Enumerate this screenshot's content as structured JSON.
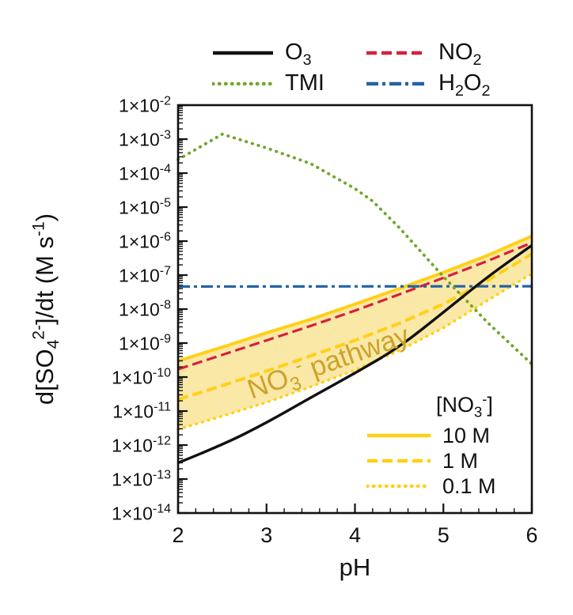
{
  "figure": {
    "background": "#ffffff"
  },
  "top_legend": {
    "items": [
      {
        "series_id": "O3",
        "label_segments": [
          {
            "t": "O"
          },
          {
            "t": "3",
            "pos": "sub"
          }
        ]
      },
      {
        "series_id": "NO2",
        "label_segments": [
          {
            "t": "NO"
          },
          {
            "t": "2",
            "pos": "sub"
          }
        ]
      },
      {
        "series_id": "TMI",
        "label_segments": [
          {
            "t": "TMI"
          }
        ]
      },
      {
        "series_id": "H2O2",
        "label_segments": [
          {
            "t": "H"
          },
          {
            "t": "2",
            "pos": "sub"
          },
          {
            "t": "O"
          },
          {
            "t": "2",
            "pos": "sub"
          }
        ]
      }
    ]
  },
  "inner_legend": {
    "title_segments": [
      {
        "t": "[NO"
      },
      {
        "t": "3",
        "pos": "sub"
      },
      {
        "t": "-",
        "pos": "sup"
      },
      {
        "t": "]"
      }
    ],
    "swatch_color": "#ffd015",
    "items": [
      {
        "label": "10 M",
        "style": "solid"
      },
      {
        "label": "1 M",
        "style": "dashed"
      },
      {
        "label": "0.1 M",
        "style": "dotted"
      }
    ]
  },
  "annotation": {
    "segments": [
      {
        "t": "NO"
      },
      {
        "t": "3",
        "pos": "sub"
      },
      {
        "t": "-",
        "pos": "sup"
      },
      {
        "t": " pathway"
      }
    ],
    "color": "#cda32b",
    "angle_deg": -19.5
  },
  "chart_data": {
    "type": "line",
    "xlabel": "pH",
    "ylabel_segments": [
      {
        "t": "d[SO"
      },
      {
        "t": "4",
        "pos": "sub"
      },
      {
        "t": "2-",
        "pos": "sup"
      },
      {
        "t": "]/dt (M s"
      },
      {
        "t": "-1",
        "pos": "sup"
      },
      {
        "t": ")"
      }
    ],
    "x_range": [
      2,
      6
    ],
    "x_ticks": [
      2,
      3,
      4,
      5,
      6
    ],
    "x_minor_step": 0.2,
    "y_scale": "log",
    "y_exp_range": [
      -2,
      -14
    ],
    "y_tick_exponents": [
      -2,
      -3,
      -4,
      -5,
      -6,
      -7,
      -8,
      -9,
      -10,
      -11,
      -12,
      -13,
      -14
    ],
    "y_tick_mantissa": "1×10",
    "grid": false,
    "band": {
      "upper": "NO3_10M",
      "lower": "NO3_01M",
      "fill": "#f9e8a6"
    },
    "series": [
      {
        "id": "NO3_01M",
        "name": "NO3- pathway, 0.1 M",
        "color": "#ffd015",
        "style": "dotted",
        "width": 3.6,
        "x": [
          2,
          2.5,
          3,
          3.5,
          4,
          4.5,
          5,
          5.5,
          6
        ],
        "y": [
          2.9e-12,
          7.1e-12,
          1.8e-11,
          5.2e-11,
          1.6e-10,
          6e-10,
          2.8e-09,
          1.8e-08,
          1.1e-07
        ]
      },
      {
        "id": "NO3_1M",
        "name": "NO3- pathway, 1 M",
        "color": "#ffd015",
        "style": "dashed",
        "width": 4,
        "x": [
          2,
          2.5,
          3,
          3.5,
          4,
          4.5,
          5,
          5.5,
          6
        ],
        "y": [
          2.2e-11,
          5.6e-11,
          1.5e-10,
          4.2e-10,
          1.2e-09,
          3.8e-09,
          1.4e-08,
          7e-08,
          4.2e-07
        ]
      },
      {
        "id": "NO3_10M",
        "name": "NO3- pathway, 10 M",
        "color": "#ffd015",
        "style": "solid",
        "width": 4,
        "x": [
          2,
          2.5,
          3,
          3.5,
          4,
          4.5,
          5,
          5.5,
          6
        ],
        "y": [
          3e-10,
          7.6e-10,
          2e-09,
          5e-09,
          1.4e-08,
          4e-08,
          1.2e-07,
          3.8e-07,
          1.4e-06
        ]
      },
      {
        "id": "NO2",
        "name": "NO2",
        "color": "#d6203c",
        "style": "dashed",
        "width": 3.2,
        "x": [
          2,
          2.5,
          3,
          3.5,
          4,
          4.5,
          5,
          5.5,
          6
        ],
        "y": [
          1.7e-10,
          4.5e-10,
          1.2e-09,
          3.2e-09,
          9e-09,
          2.7e-08,
          8.3e-08,
          2.6e-07,
          9e-07
        ]
      },
      {
        "id": "H2O2",
        "name": "H2O2",
        "color": "#2363a4",
        "style": "dashdot",
        "width": 3.2,
        "x": [
          2,
          6
        ],
        "y": [
          4.6e-08,
          4.7e-08
        ]
      },
      {
        "id": "TMI",
        "name": "TMI",
        "color": "#72a52c",
        "style": "dotted",
        "width": 3.8,
        "x": [
          2,
          2.5,
          3,
          3.5,
          4,
          4.2,
          4.5,
          5,
          5.5,
          6
        ],
        "y": [
          0.00025,
          0.0014,
          0.00055,
          0.00019,
          3.5e-05,
          1.5e-05,
          2.5e-06,
          9e-08,
          4e-09,
          2.4e-10
        ]
      },
      {
        "id": "O3",
        "name": "O3",
        "color": "#111111",
        "style": "solid",
        "width": 3.4,
        "smooth": true,
        "x": [
          2,
          2.5,
          3,
          3.5,
          4,
          4.5,
          5,
          5.5,
          6
        ],
        "y": [
          3e-13,
          1e-12,
          4.5e-12,
          2.5e-11,
          1.3e-10,
          7.5e-10,
          8e-09,
          9e-08,
          7.5e-07
        ]
      }
    ]
  }
}
